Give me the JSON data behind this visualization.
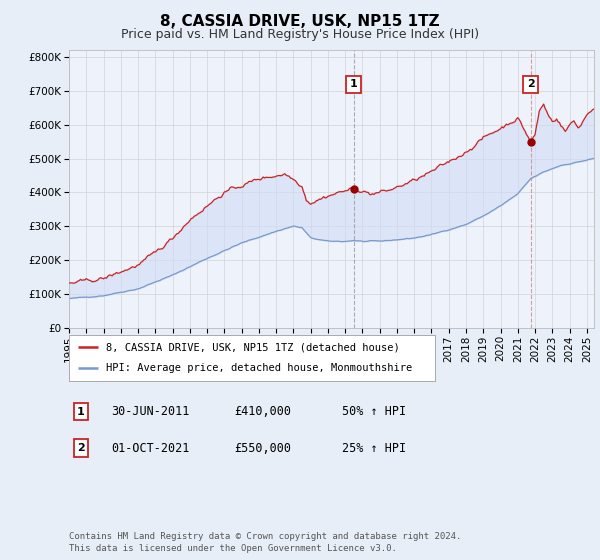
{
  "title": "8, CASSIA DRIVE, USK, NP15 1TZ",
  "subtitle": "Price paid vs. HM Land Registry's House Price Index (HPI)",
  "ylim": [
    0,
    820000
  ],
  "yticks": [
    0,
    100000,
    200000,
    300000,
    400000,
    500000,
    600000,
    700000,
    800000
  ],
  "ytick_labels": [
    "£0",
    "£100K",
    "£200K",
    "£300K",
    "£400K",
    "£500K",
    "£600K",
    "£700K",
    "£800K"
  ],
  "background_color": "#e8eef8",
  "plot_bg_color": "#eef2fb",
  "red_line_color": "#cc2222",
  "blue_line_color": "#7799cc",
  "fill_color": "#d0ddf5",
  "marker1_date_idx": 198,
  "marker1_value": 410000,
  "marker2_date_idx": 321,
  "marker2_value": 550000,
  "vline1_color": "#999999",
  "vline2_color": "#cc8888",
  "legend_red_label": "8, CASSIA DRIVE, USK, NP15 1TZ (detached house)",
  "legend_blue_label": "HPI: Average price, detached house, Monmouthshire",
  "annotation1_num": "1",
  "annotation1_date": "30-JUN-2011",
  "annotation1_price": "£410,000",
  "annotation1_pct": "50% ↑ HPI",
  "annotation2_num": "2",
  "annotation2_date": "01-OCT-2021",
  "annotation2_price": "£550,000",
  "annotation2_pct": "25% ↑ HPI",
  "footer": "Contains HM Land Registry data © Crown copyright and database right 2024.\nThis data is licensed under the Open Government Licence v3.0.",
  "title_fontsize": 11,
  "subtitle_fontsize": 9,
  "axis_fontsize": 7.5
}
